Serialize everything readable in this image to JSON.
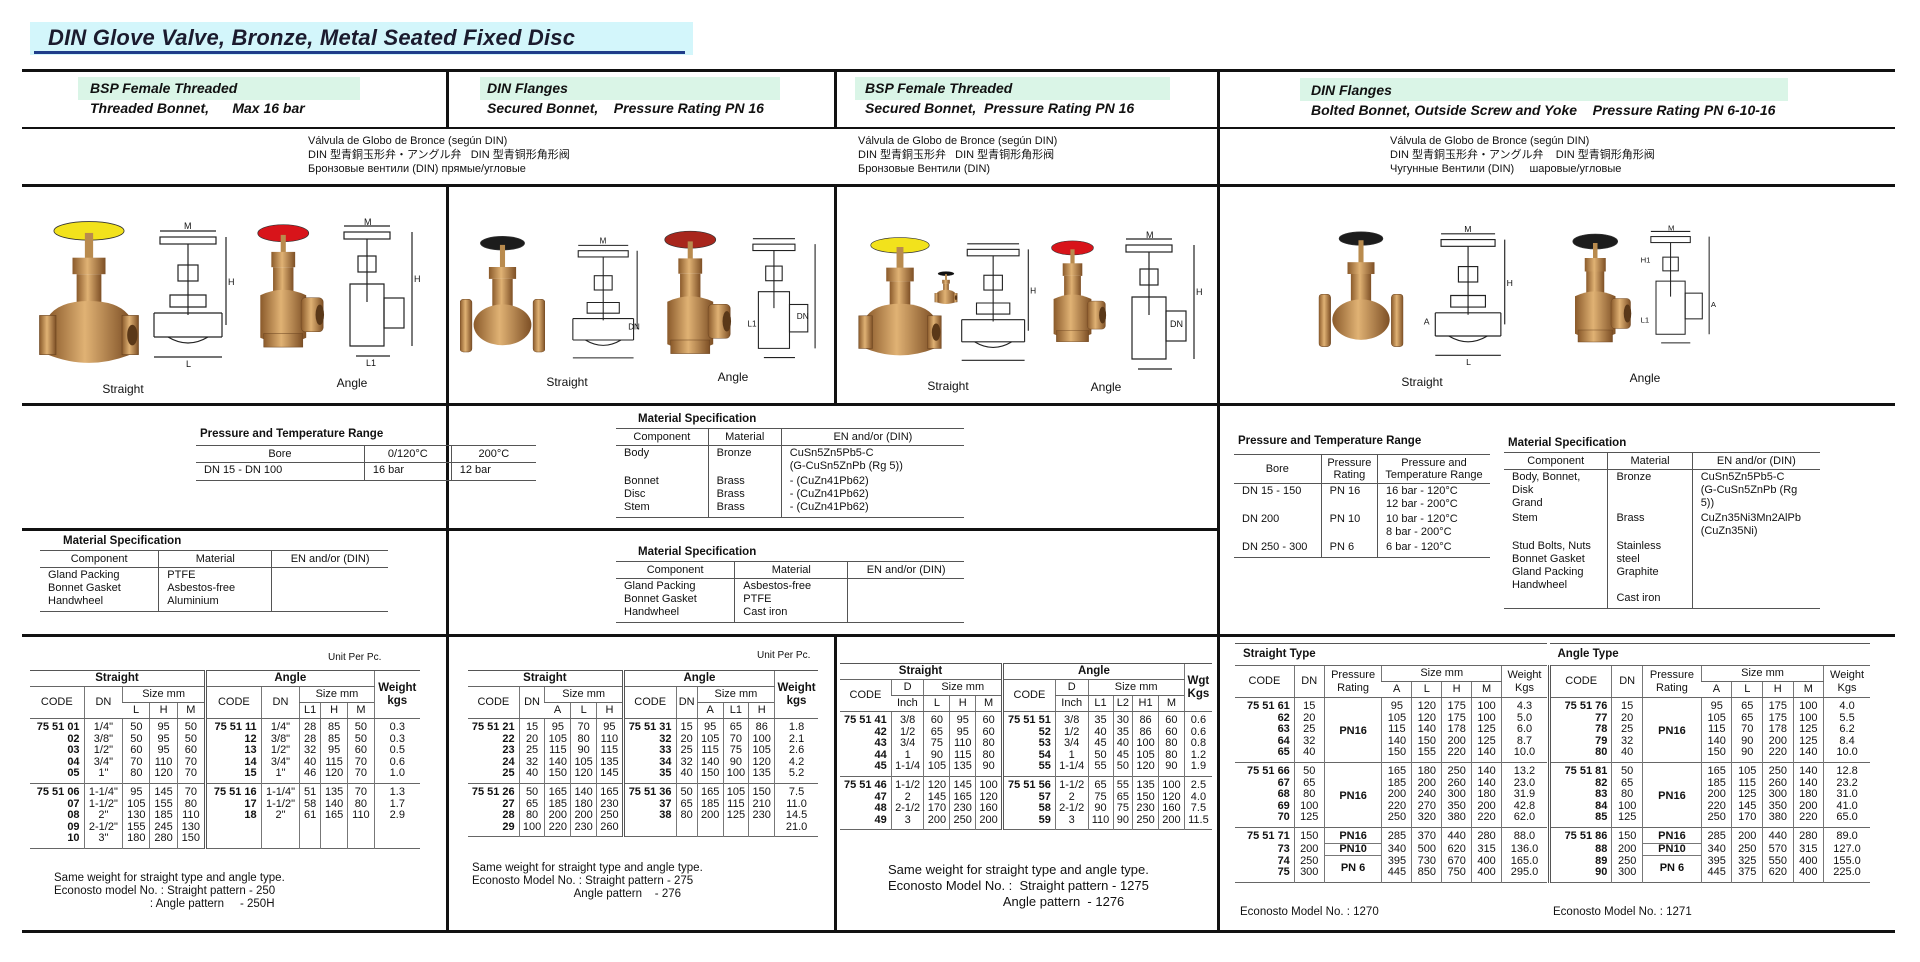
{
  "title": "DIN Glove Valve,  Bronze, Metal Seated Fixed Disc",
  "colors": {
    "title_band": "#d3f6fb",
    "header_band": "#daf5e7",
    "title_underline": "#1f3d8a",
    "bronze": "#c08a4a"
  },
  "sections": [
    {
      "line1": "BSP Female Threaded",
      "line2": "Threaded Bonnet,      Max 16 bar",
      "subtitle": "Válvula de Globo de Bronce (según DIN)\nDIN 型青銅玉形弁・アングル弁   DIN 型青铜形角形阀\nБронзовые вентили (DIN) прямые/угловые",
      "straight_label": "Straight",
      "angle_label": "Angle",
      "wheel_straight": "#f2e21c",
      "wheel_angle": "#d8141a"
    },
    {
      "line1": "DIN Flanges",
      "line2": "Secured Bonnet,    Pressure Rating PN 16",
      "straight_label": "Straight",
      "angle_label": "Angle",
      "wheel_straight": "#1c1c1c",
      "wheel_angle": "#a8261c"
    },
    {
      "line1": "BSP Female Threaded",
      "line2": "Secured Bonnet,  Pressure Rating PN 16",
      "subtitle": "Válvula de Globo de Bronce (según DIN)\nDIN 型青銅玉形弁   DIN 型青铜形角形阀\nБронзовые Вентили (DIN)",
      "straight_label": "Straight",
      "angle_label": "Angle",
      "wheel_straight": "#f2e21c",
      "wheel_angle": "#d8141a"
    },
    {
      "line1": "DIN Flanges",
      "line2": "Bolted Bonnet, Outside Screw and Yoke    Pressure Rating PN 6-10-16",
      "subtitle": "Válvula de Globo de Bronce (según DIN)\nDIN 型青銅玉形弁・アングル弁    DIN 型青铜形角形阀\nЧугунные Вентили (DIN)     шаровые/угловые",
      "straight_label": "Straight",
      "angle_label": "Angle",
      "wheel_straight": "#1c1c1c",
      "wheel_angle": "#1c1c1c"
    }
  ],
  "drawing_labels": {
    "m": "M",
    "h": "H",
    "h1": "H1",
    "l": "L",
    "l1": "L1",
    "dn": "DN",
    "a": "A"
  },
  "specs": {
    "pt1": {
      "title": "Pressure and Temperature Range",
      "headers": [
        "Bore",
        "0/120°C",
        "200°C"
      ],
      "rows": [
        [
          "DN 15 - DN 100",
          "16 bar",
          "12 bar"
        ]
      ]
    },
    "mat1": {
      "title": "Material Specification",
      "headers": [
        "Component",
        "Material",
        "EN and/or (DIN)"
      ],
      "rows": [
        [
          "Gland Packing\nBonnet Gasket\nHandwheel",
          "PTFE\nAsbestos-free\nAluminium",
          ""
        ]
      ]
    },
    "mat2a": {
      "title": "Material Specification",
      "headers": [
        "Component",
        "Material",
        "EN and/or (DIN)"
      ],
      "rows": [
        [
          "Body",
          "Bronze",
          "CuSn5Zn5Pb5-C\n(G-CuSn5ZnPb (Rg 5))"
        ],
        [
          "Bonnet\nDisc\nStem",
          "Brass\nBrass\nBrass",
          " - (CuZn41Pb62)\n - (CuZn41Pb62)\n - (CuZn41Pb62)"
        ]
      ]
    },
    "mat2b": {
      "title": "Material Specification",
      "headers": [
        "Component",
        "Material",
        "EN and/or (DIN)"
      ],
      "rows": [
        [
          "Gland Packing\nBonnet Gasket\nHandwheel",
          "Asbestos-free\nPTFE\nCast iron",
          ""
        ]
      ]
    },
    "pt4": {
      "title": "Pressure and Temperature Range",
      "headers": [
        "Bore",
        "Pressure\nRating",
        "Pressure and\nTemperature Range"
      ],
      "rows": [
        [
          "DN 15 - 150",
          "PN 16",
          "16 bar - 120°C\n12 bar - 200°C"
        ],
        [
          "DN 200",
          "PN 10",
          "10 bar - 120°C\n 8 bar - 200°C"
        ],
        [
          "DN 250 - 300",
          "PN 6",
          " 6 bar - 120°C"
        ]
      ]
    },
    "mat4": {
      "title": "Material Specification",
      "headers": [
        "Component",
        "Material",
        "EN and/or (DIN)"
      ],
      "rows": [
        [
          "Body, Bonnet, Disk\nGrand",
          "Bronze",
          "CuSn5Zn5Pb5-C\n(G-CuSn5ZnPb (Rg 5))"
        ],
        [
          "Stem",
          "Brass",
          "CuZn35Ni3Mn2AlPb\n(CuZn35Ni)"
        ],
        [
          "Stud Bolts, Nuts\nBonnet Gasket\nGland Packing\nHandwheel",
          "Stainless steel\nGraphite\n\nCast iron",
          ""
        ]
      ]
    }
  },
  "tables": {
    "t1": {
      "unit": "Unit Per Pc.",
      "head": [
        [
          "Straight",
          "Angle",
          "Weight\nkgs"
        ],
        [
          "CODE",
          "DN",
          "Size mm",
          "CODE",
          "DN",
          "Size mm"
        ],
        [
          "L",
          "H",
          "M",
          "L1",
          "H",
          "M"
        ]
      ],
      "groups": [
        [
          [
            "75 51 01",
            "1/4\"",
            "50",
            "95",
            "50",
            "75 51 11",
            "1/4\"",
            "28",
            "85",
            "50",
            "0.3"
          ],
          [
            "02",
            "3/8\"",
            "50",
            "95",
            "50",
            "12",
            "3/8\"",
            "28",
            "85",
            "50",
            "0.3"
          ],
          [
            "03",
            "1/2\"",
            "60",
            "95",
            "60",
            "13",
            "1/2\"",
            "32",
            "95",
            "60",
            "0.5"
          ],
          [
            "04",
            "3/4\"",
            "70",
            "110",
            "70",
            "14",
            "3/4\"",
            "40",
            "115",
            "70",
            "0.6"
          ],
          [
            "05",
            "1\"",
            "80",
            "120",
            "70",
            "15",
            "1\"",
            "46",
            "120",
            "70",
            "1.0"
          ]
        ],
        [
          [
            "75 51 06",
            "1-1/4\"",
            "95",
            "145",
            "70",
            "75 51 16",
            "1-1/4\"",
            "51",
            "135",
            "70",
            "1.3"
          ],
          [
            "07",
            "1-1/2\"",
            "105",
            "155",
            "80",
            "17",
            "1-1/2\"",
            "58",
            "140",
            "80",
            "1.7"
          ],
          [
            "08",
            "2\"",
            "130",
            "185",
            "110",
            "18",
            "2\"",
            "61",
            "165",
            "110",
            "2.9"
          ],
          [
            "09",
            "2-1/2\"",
            "155",
            "245",
            "130",
            "",
            "",
            "",
            "",
            "",
            ""
          ],
          [
            "10",
            "3\"",
            "180",
            "280",
            "150",
            "",
            "",
            "",
            "",
            "",
            ""
          ]
        ]
      ],
      "note": "Same weight for straight type and angle type.\nEconosto model No. : Straight pattern - 250\n                              : Angle pattern     - 250H"
    },
    "t2": {
      "unit": "Unit Per Pc.",
      "head": [
        [
          "Straight",
          "Angle",
          "Weight\nkgs"
        ],
        [
          "CODE",
          "DN",
          "Size mm",
          "CODE",
          "DN",
          "Size mm"
        ],
        [
          "A",
          "L",
          "H",
          "A",
          "L1",
          "H"
        ]
      ],
      "groups": [
        [
          [
            "75 51 21",
            "15",
            "95",
            "70",
            "95",
            "75 51 31",
            "15",
            "95",
            "65",
            "86",
            "1.8"
          ],
          [
            "22",
            "20",
            "105",
            "80",
            "110",
            "32",
            "20",
            "105",
            "70",
            "100",
            "2.1"
          ],
          [
            "23",
            "25",
            "115",
            "90",
            "115",
            "33",
            "25",
            "115",
            "75",
            "105",
            "2.6"
          ],
          [
            "24",
            "32",
            "140",
            "105",
            "135",
            "34",
            "32",
            "140",
            "90",
            "120",
            "4.2"
          ],
          [
            "25",
            "40",
            "150",
            "120",
            "145",
            "35",
            "40",
            "150",
            "100",
            "135",
            "5.2"
          ]
        ],
        [
          [
            "75 51 26",
            "50",
            "165",
            "140",
            "165",
            "75 51 36",
            "50",
            "165",
            "105",
            "150",
            "7.5"
          ],
          [
            "27",
            "65",
            "185",
            "180",
            "230",
            "37",
            "65",
            "185",
            "115",
            "210",
            "11.0"
          ],
          [
            "28",
            "80",
            "200",
            "200",
            "250",
            "38",
            "80",
            "200",
            "125",
            "230",
            "14.5"
          ],
          [
            "29",
            "100",
            "220",
            "230",
            "260",
            "",
            "",
            "",
            "",
            "",
            "21.0"
          ]
        ]
      ],
      "note": "Same weight for straight type and angle type.\nEconosto Model No. : Straight pattern - 275\n                                Angle pattern    - 276"
    },
    "t3": {
      "head": [
        [
          "Straight",
          "Angle",
          "Wgt\nKgs"
        ],
        [
          "CODE",
          "D",
          "Size mm",
          "CODE",
          "D",
          "Size mm"
        ],
        [
          "Inch",
          "L",
          "H",
          "M",
          "Inch",
          "L1",
          "L2",
          "H1",
          "M"
        ]
      ],
      "groups": [
        [
          [
            "75 51 41",
            "3/8",
            "60",
            "95",
            "60",
            "75 51 51",
            "3/8",
            "35",
            "30",
            "86",
            "60",
            "0.6"
          ],
          [
            "42",
            "1/2",
            "65",
            "95",
            "60",
            "52",
            "1/2",
            "40",
            "35",
            "86",
            "60",
            "0.6"
          ],
          [
            "43",
            "3/4",
            "75",
            "110",
            "80",
            "53",
            "3/4",
            "45",
            "40",
            "100",
            "80",
            "0.8"
          ],
          [
            "44",
            "1",
            "90",
            "115",
            "80",
            "54",
            "1",
            "50",
            "45",
            "105",
            "80",
            "1.2"
          ],
          [
            "45",
            "1-1/4",
            "105",
            "135",
            "90",
            "55",
            "1-1/4",
            "55",
            "50",
            "120",
            "90",
            "1.9"
          ]
        ],
        [
          [
            "75 51 46",
            "1-1/2",
            "120",
            "145",
            "100",
            "75 51 56",
            "1-1/2",
            "65",
            "55",
            "135",
            "100",
            "2.5"
          ],
          [
            "47",
            "2",
            "145",
            "165",
            "120",
            "57",
            "2",
            "75",
            "65",
            "150",
            "120",
            "4.0"
          ],
          [
            "48",
            "2-1/2",
            "170",
            "230",
            "160",
            "58",
            "2-1/2",
            "90",
            "75",
            "230",
            "160",
            "7.5"
          ],
          [
            "49",
            "3",
            "200",
            "250",
            "200",
            "59",
            "3",
            "110",
            "90",
            "250",
            "200",
            "11.5"
          ]
        ]
      ],
      "note": "Same weight for straight type and angle type.\nEconosto Model No. :  Straight pattern - 1275\n                                Angle pattern  - 1276"
    },
    "t4s": {
      "title": "Straight Type",
      "head": [
        [
          "CODE",
          "DN",
          "Pressure\nRating",
          "Size mm",
          "Weight\nKgs"
        ],
        [
          "A",
          "L",
          "H",
          "M"
        ]
      ],
      "groups": [
        [
          [
            "75 51 61",
            "15",
            "PN16",
            "95",
            "120",
            "175",
            "100",
            "4.3"
          ],
          [
            "62",
            "20",
            "",
            "105",
            "120",
            "175",
            "100",
            "5.0"
          ],
          [
            "63",
            "25",
            "",
            "115",
            "140",
            "178",
            "125",
            "6.0"
          ],
          [
            "64",
            "32",
            "",
            "140",
            "150",
            "200",
            "125",
            "8.7"
          ],
          [
            "65",
            "40",
            "",
            "150",
            "155",
            "220",
            "140",
            "10.0"
          ]
        ],
        [
          [
            "75 51 66",
            "50",
            "PN16",
            "165",
            "180",
            "250",
            "140",
            "13.2"
          ],
          [
            "67",
            "65",
            "",
            "185",
            "200",
            "260",
            "140",
            "23.0"
          ],
          [
            "68",
            "80",
            "",
            "200",
            "240",
            "300",
            "180",
            "31.9"
          ],
          [
            "69",
            "100",
            "",
            "220",
            "270",
            "350",
            "200",
            "42.8"
          ],
          [
            "70",
            "125",
            "",
            "250",
            "320",
            "380",
            "220",
            "62.0"
          ]
        ],
        [
          [
            "75 51 71",
            "150",
            "PN16",
            "285",
            "370",
            "440",
            "280",
            "88.0"
          ],
          [
            "73",
            "200",
            "PN10",
            "340",
            "500",
            "620",
            "315",
            "136.0"
          ],
          [
            "74",
            "250",
            "PN 6",
            "395",
            "730",
            "670",
            "400",
            "165.0"
          ],
          [
            "75",
            "300",
            "",
            "445",
            "850",
            "750",
            "400",
            "295.0"
          ]
        ]
      ],
      "note": "Econosto Model No. : 1270"
    },
    "t4a": {
      "title": "Angle Type",
      "head": [
        [
          "CODE",
          "DN",
          "Pressure\nRating",
          "Size mm",
          "Weight\nKgs"
        ],
        [
          "A",
          "L",
          "H",
          "M"
        ]
      ],
      "groups": [
        [
          [
            "75 51 76",
            "15",
            "PN16",
            "95",
            "65",
            "175",
            "100",
            "4.0"
          ],
          [
            "77",
            "20",
            "",
            "105",
            "65",
            "175",
            "100",
            "5.5"
          ],
          [
            "78",
            "25",
            "",
            "115",
            "70",
            "178",
            "125",
            "6.2"
          ],
          [
            "79",
            "32",
            "",
            "140",
            "90",
            "200",
            "125",
            "8.4"
          ],
          [
            "80",
            "40",
            "",
            "150",
            "90",
            "220",
            "140",
            "10.0"
          ]
        ],
        [
          [
            "75 51 81",
            "50",
            "PN16",
            "165",
            "105",
            "250",
            "140",
            "12.8"
          ],
          [
            "82",
            "65",
            "",
            "185",
            "115",
            "260",
            "140",
            "23.2"
          ],
          [
            "83",
            "80",
            "",
            "200",
            "125",
            "300",
            "180",
            "31.0"
          ],
          [
            "84",
            "100",
            "",
            "220",
            "145",
            "350",
            "200",
            "41.0"
          ],
          [
            "85",
            "125",
            "",
            "250",
            "170",
            "380",
            "220",
            "65.0"
          ]
        ],
        [
          [
            "75 51 86",
            "150",
            "PN16",
            "285",
            "200",
            "440",
            "280",
            "89.0"
          ],
          [
            "88",
            "200",
            "PN10",
            "340",
            "250",
            "570",
            "315",
            "127.0"
          ],
          [
            "89",
            "250",
            "PN 6",
            "395",
            "325",
            "550",
            "400",
            "155.0"
          ],
          [
            "90",
            "300",
            "",
            "445",
            "375",
            "620",
            "400",
            "225.0"
          ]
        ]
      ],
      "note": "Econosto Model No. : 1271"
    }
  }
}
